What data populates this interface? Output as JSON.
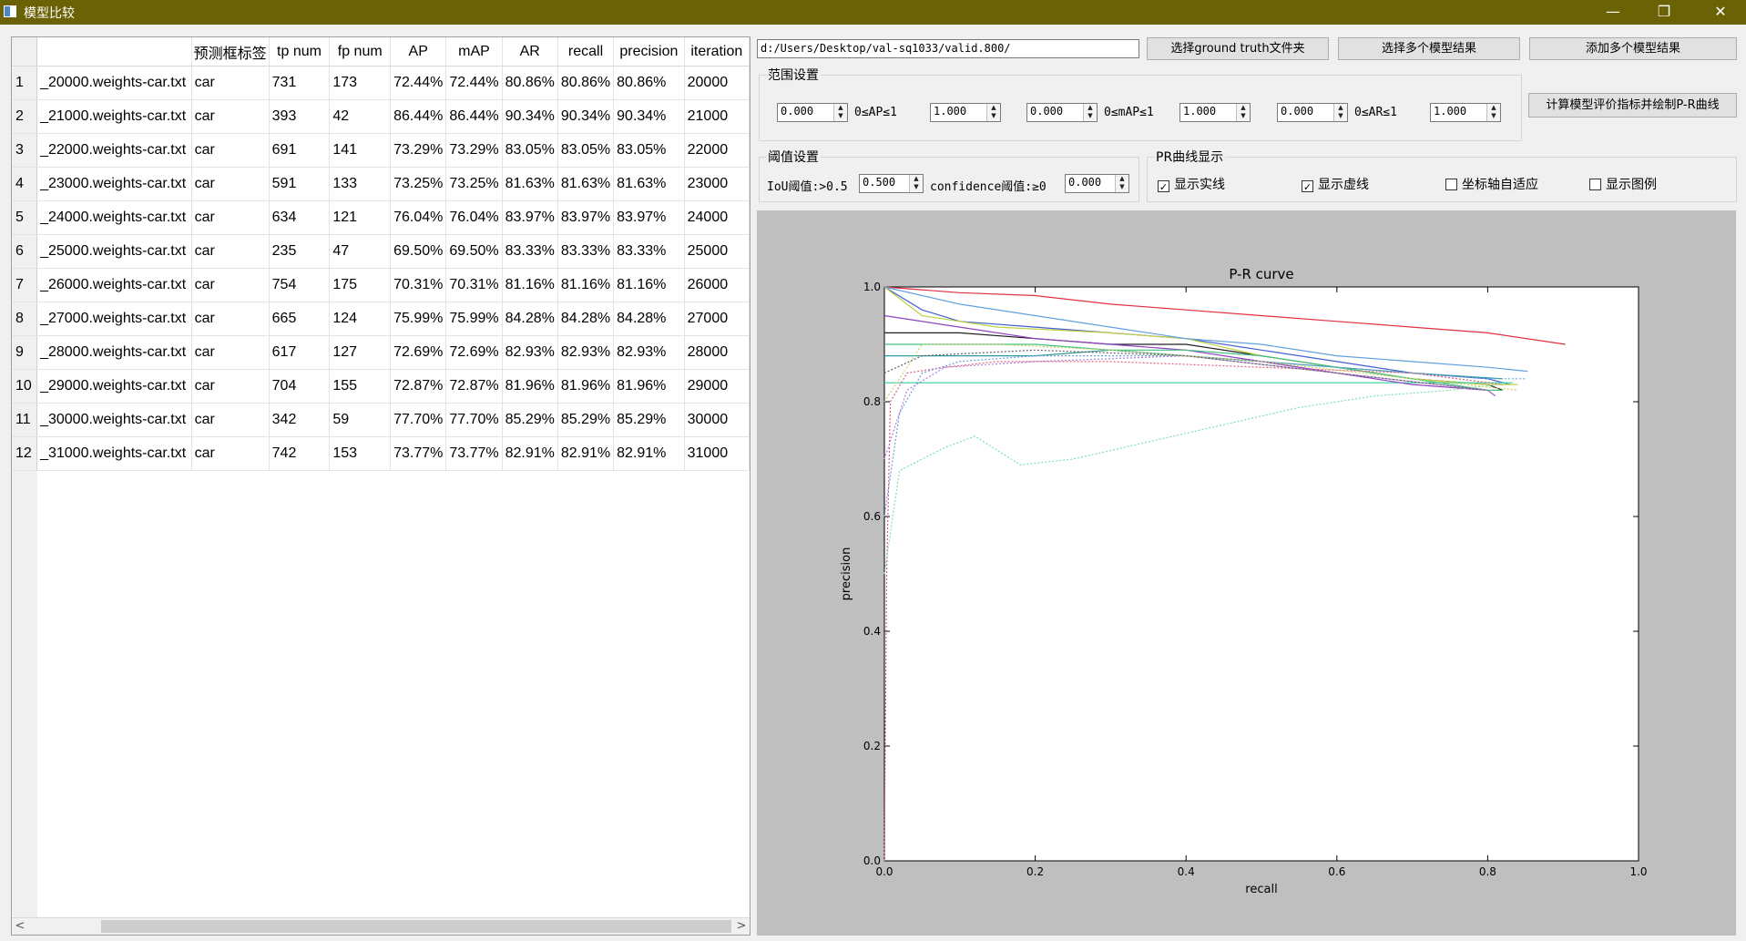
{
  "window": {
    "title": "模型比较",
    "min_glyph": "—",
    "restore_glyph": "❐",
    "close_glyph": "✕"
  },
  "table": {
    "columns": [
      "预测框标签",
      "tp num",
      "fp num",
      "AP",
      "mAP",
      "AR",
      "recall",
      "precision",
      "iteration"
    ],
    "rows": [
      {
        "n": "1",
        "file": "_20000.weights-car.txt",
        "label": "car",
        "tp": "731",
        "fp": "173",
        "ap": "72.44%",
        "map": "72.44%",
        "ar": "80.86%",
        "recall": "80.86%",
        "precision": "80.86%",
        "iteration": "20000"
      },
      {
        "n": "2",
        "file": "_21000.weights-car.txt",
        "label": "car",
        "tp": "393",
        "fp": "42",
        "ap": "86.44%",
        "map": "86.44%",
        "ar": "90.34%",
        "recall": "90.34%",
        "precision": "90.34%",
        "iteration": "21000"
      },
      {
        "n": "3",
        "file": "_22000.weights-car.txt",
        "label": "car",
        "tp": "691",
        "fp": "141",
        "ap": "73.29%",
        "map": "73.29%",
        "ar": "83.05%",
        "recall": "83.05%",
        "precision": "83.05%",
        "iteration": "22000"
      },
      {
        "n": "4",
        "file": "_23000.weights-car.txt",
        "label": "car",
        "tp": "591",
        "fp": "133",
        "ap": "73.25%",
        "map": "73.25%",
        "ar": "81.63%",
        "recall": "81.63%",
        "precision": "81.63%",
        "iteration": "23000"
      },
      {
        "n": "5",
        "file": "_24000.weights-car.txt",
        "label": "car",
        "tp": "634",
        "fp": "121",
        "ap": "76.04%",
        "map": "76.04%",
        "ar": "83.97%",
        "recall": "83.97%",
        "precision": "83.97%",
        "iteration": "24000"
      },
      {
        "n": "6",
        "file": "_25000.weights-car.txt",
        "label": "car",
        "tp": "235",
        "fp": "47",
        "ap": "69.50%",
        "map": "69.50%",
        "ar": "83.33%",
        "recall": "83.33%",
        "precision": "83.33%",
        "iteration": "25000"
      },
      {
        "n": "7",
        "file": "_26000.weights-car.txt",
        "label": "car",
        "tp": "754",
        "fp": "175",
        "ap": "70.31%",
        "map": "70.31%",
        "ar": "81.16%",
        "recall": "81.16%",
        "precision": "81.16%",
        "iteration": "26000"
      },
      {
        "n": "8",
        "file": "_27000.weights-car.txt",
        "label": "car",
        "tp": "665",
        "fp": "124",
        "ap": "75.99%",
        "map": "75.99%",
        "ar": "84.28%",
        "recall": "84.28%",
        "precision": "84.28%",
        "iteration": "27000"
      },
      {
        "n": "9",
        "file": "_28000.weights-car.txt",
        "label": "car",
        "tp": "617",
        "fp": "127",
        "ap": "72.69%",
        "map": "72.69%",
        "ar": "82.93%",
        "recall": "82.93%",
        "precision": "82.93%",
        "iteration": "28000"
      },
      {
        "n": "10",
        "file": "_29000.weights-car.txt",
        "label": "car",
        "tp": "704",
        "fp": "155",
        "ap": "72.87%",
        "map": "72.87%",
        "ar": "81.96%",
        "recall": "81.96%",
        "precision": "81.96%",
        "iteration": "29000"
      },
      {
        "n": "11",
        "file": "_30000.weights-car.txt",
        "label": "car",
        "tp": "342",
        "fp": "59",
        "ap": "77.70%",
        "map": "77.70%",
        "ar": "85.29%",
        "recall": "85.29%",
        "precision": "85.29%",
        "iteration": "30000"
      },
      {
        "n": "12",
        "file": "_31000.weights-car.txt",
        "label": "car",
        "tp": "742",
        "fp": "153",
        "ap": "73.77%",
        "map": "73.77%",
        "ar": "82.91%",
        "recall": "82.91%",
        "precision": "82.91%",
        "iteration": "31000"
      }
    ],
    "scroll_left": "<",
    "scroll_right": ">"
  },
  "controls": {
    "path_value": "d:/Users/Desktop/val-sq1033/valid.800/",
    "btn_gt": "选择ground truth文件夹",
    "btn_select_models": "选择多个模型结果",
    "btn_add_models": "添加多个模型结果",
    "btn_compute": "计算模型评价指标并绘制P-R曲线",
    "range_group": "范围设置",
    "ap_min": "0.000",
    "ap_label": "0≤AP≤1",
    "ap_max": "1.000",
    "map_min": "0.000",
    "map_label": "0≤mAP≤1",
    "map_max": "1.000",
    "ar_min": "0.000",
    "ar_label": "0≤AR≤1",
    "ar_max": "1.000",
    "threshold_group": "阈值设置",
    "iou_label": "IoU阈值:>0.5",
    "iou_value": "0.500",
    "conf_label": "confidence阈值:≥0",
    "conf_value": "0.000",
    "pr_group": "PR曲线显示",
    "cb_solid": "显示实线",
    "cb_solid_checked": true,
    "cb_dashed": "显示虚线",
    "cb_dashed_checked": true,
    "cb_autoscale": "坐标轴自适应",
    "cb_autoscale_checked": false,
    "cb_legend": "显示图例",
    "cb_legend_checked": false,
    "spin_up": "▲",
    "spin_down": "▼"
  },
  "chart_data": {
    "type": "line",
    "title": "P-R curve",
    "xlabel": "recall",
    "ylabel": "precision",
    "xlim": [
      0,
      1
    ],
    "ylim": [
      0,
      1
    ],
    "xticks": [
      "0.0",
      "0.2",
      "0.4",
      "0.6",
      "0.8",
      "1.0"
    ],
    "yticks": [
      "0.0",
      "0.2",
      "0.4",
      "0.6",
      "0.8",
      "1.0"
    ],
    "grid": false,
    "series": [
      {
        "color": "#e03040",
        "style": "solid",
        "points": [
          [
            0.0,
            1.0
          ],
          [
            0.1,
            0.99
          ],
          [
            0.2,
            0.985
          ],
          [
            0.3,
            0.97
          ],
          [
            0.4,
            0.96
          ],
          [
            0.5,
            0.95
          ],
          [
            0.6,
            0.94
          ],
          [
            0.7,
            0.93
          ],
          [
            0.8,
            0.92
          ],
          [
            0.903,
            0.9
          ]
        ]
      },
      {
        "color": "#4060d0",
        "style": "solid",
        "points": [
          [
            0.0,
            1.0
          ],
          [
            0.05,
            0.96
          ],
          [
            0.1,
            0.94
          ],
          [
            0.2,
            0.93
          ],
          [
            0.3,
            0.92
          ],
          [
            0.4,
            0.91
          ],
          [
            0.5,
            0.89
          ],
          [
            0.6,
            0.87
          ],
          [
            0.7,
            0.85
          ],
          [
            0.8,
            0.84
          ],
          [
            0.83,
            0.83
          ]
        ]
      },
      {
        "color": "#202020",
        "style": "solid",
        "points": [
          [
            0.0,
            0.92
          ],
          [
            0.1,
            0.92
          ],
          [
            0.2,
            0.91
          ],
          [
            0.3,
            0.9
          ],
          [
            0.4,
            0.9
          ],
          [
            0.5,
            0.88
          ],
          [
            0.6,
            0.86
          ],
          [
            0.7,
            0.84
          ],
          [
            0.8,
            0.83
          ],
          [
            0.82,
            0.82
          ]
        ]
      },
      {
        "color": "#c0d040",
        "style": "solid",
        "points": [
          [
            0.0,
            1.0
          ],
          [
            0.05,
            0.95
          ],
          [
            0.15,
            0.93
          ],
          [
            0.3,
            0.92
          ],
          [
            0.4,
            0.91
          ],
          [
            0.5,
            0.88
          ],
          [
            0.6,
            0.86
          ],
          [
            0.7,
            0.84
          ],
          [
            0.8,
            0.83
          ],
          [
            0.84,
            0.83
          ]
        ]
      },
      {
        "color": "#60a0e0",
        "style": "solid",
        "points": [
          [
            0.0,
            1.0
          ],
          [
            0.1,
            0.97
          ],
          [
            0.2,
            0.95
          ],
          [
            0.3,
            0.93
          ],
          [
            0.4,
            0.91
          ],
          [
            0.5,
            0.9
          ],
          [
            0.6,
            0.88
          ],
          [
            0.7,
            0.87
          ],
          [
            0.8,
            0.86
          ],
          [
            0.853,
            0.853
          ]
        ]
      },
      {
        "color": "#30d0a0",
        "style": "solid",
        "points": [
          [
            0.0,
            0.833
          ],
          [
            0.833,
            0.833
          ]
        ]
      },
      {
        "color": "#2a9a9a",
        "style": "solid",
        "points": [
          [
            0.0,
            0.88
          ],
          [
            0.2,
            0.88
          ],
          [
            0.3,
            0.89
          ],
          [
            0.4,
            0.88
          ],
          [
            0.5,
            0.87
          ],
          [
            0.6,
            0.86
          ],
          [
            0.7,
            0.85
          ],
          [
            0.82,
            0.84
          ]
        ]
      },
      {
        "color": "#9040c0",
        "style": "solid",
        "points": [
          [
            0.0,
            0.95
          ],
          [
            0.1,
            0.93
          ],
          [
            0.2,
            0.91
          ],
          [
            0.3,
            0.9
          ],
          [
            0.4,
            0.89
          ],
          [
            0.5,
            0.87
          ],
          [
            0.6,
            0.85
          ],
          [
            0.7,
            0.83
          ],
          [
            0.8,
            0.82
          ],
          [
            0.81,
            0.81
          ]
        ]
      },
      {
        "color": "#40c080",
        "style": "solid",
        "points": [
          [
            0.0,
            0.9
          ],
          [
            0.1,
            0.9
          ],
          [
            0.2,
            0.9
          ],
          [
            0.3,
            0.89
          ],
          [
            0.4,
            0.89
          ],
          [
            0.5,
            0.88
          ],
          [
            0.6,
            0.86
          ],
          [
            0.7,
            0.84
          ],
          [
            0.8,
            0.82
          ],
          [
            0.82,
            0.82
          ]
        ]
      },
      {
        "color": "#e06080",
        "style": "dotted",
        "points": [
          [
            0.0,
            0.0
          ],
          [
            0.003,
            0.5
          ],
          [
            0.008,
            0.8
          ],
          [
            0.03,
            0.85
          ],
          [
            0.08,
            0.86
          ],
          [
            0.15,
            0.87
          ],
          [
            0.3,
            0.87
          ],
          [
            0.5,
            0.86
          ],
          [
            0.7,
            0.85
          ],
          [
            0.82,
            0.83
          ]
        ]
      },
      {
        "color": "#80e0b0",
        "style": "dotted",
        "points": [
          [
            0.0,
            0.5
          ],
          [
            0.02,
            0.68
          ],
          [
            0.05,
            0.7
          ],
          [
            0.08,
            0.72
          ],
          [
            0.12,
            0.74
          ],
          [
            0.18,
            0.69
          ],
          [
            0.25,
            0.7
          ],
          [
            0.35,
            0.73
          ],
          [
            0.45,
            0.76
          ],
          [
            0.55,
            0.79
          ],
          [
            0.65,
            0.81
          ],
          [
            0.75,
            0.82
          ],
          [
            0.833,
            0.833
          ]
        ]
      },
      {
        "color": "#70a0e0",
        "style": "dotted",
        "points": [
          [
            0.0,
            0.6
          ],
          [
            0.02,
            0.78
          ],
          [
            0.05,
            0.85
          ],
          [
            0.1,
            0.87
          ],
          [
            0.2,
            0.88
          ],
          [
            0.4,
            0.88
          ],
          [
            0.6,
            0.86
          ],
          [
            0.8,
            0.84
          ],
          [
            0.85,
            0.84
          ]
        ]
      },
      {
        "color": "#b080e0",
        "style": "dotted",
        "points": [
          [
            0.0,
            0.7
          ],
          [
            0.03,
            0.82
          ],
          [
            0.08,
            0.86
          ],
          [
            0.2,
            0.87
          ],
          [
            0.4,
            0.88
          ],
          [
            0.6,
            0.85
          ],
          [
            0.8,
            0.82
          ],
          [
            0.81,
            0.81
          ]
        ]
      },
      {
        "color": "#d0d060",
        "style": "dotted",
        "points": [
          [
            0.0,
            0.8
          ],
          [
            0.05,
            0.9
          ],
          [
            0.15,
            0.9
          ],
          [
            0.3,
            0.89
          ],
          [
            0.5,
            0.87
          ],
          [
            0.7,
            0.84
          ],
          [
            0.84,
            0.82
          ]
        ]
      },
      {
        "color": "#606060",
        "style": "dotted",
        "points": [
          [
            0.0,
            0.85
          ],
          [
            0.05,
            0.88
          ],
          [
            0.2,
            0.89
          ],
          [
            0.4,
            0.88
          ],
          [
            0.6,
            0.85
          ],
          [
            0.8,
            0.82
          ]
        ]
      }
    ]
  }
}
